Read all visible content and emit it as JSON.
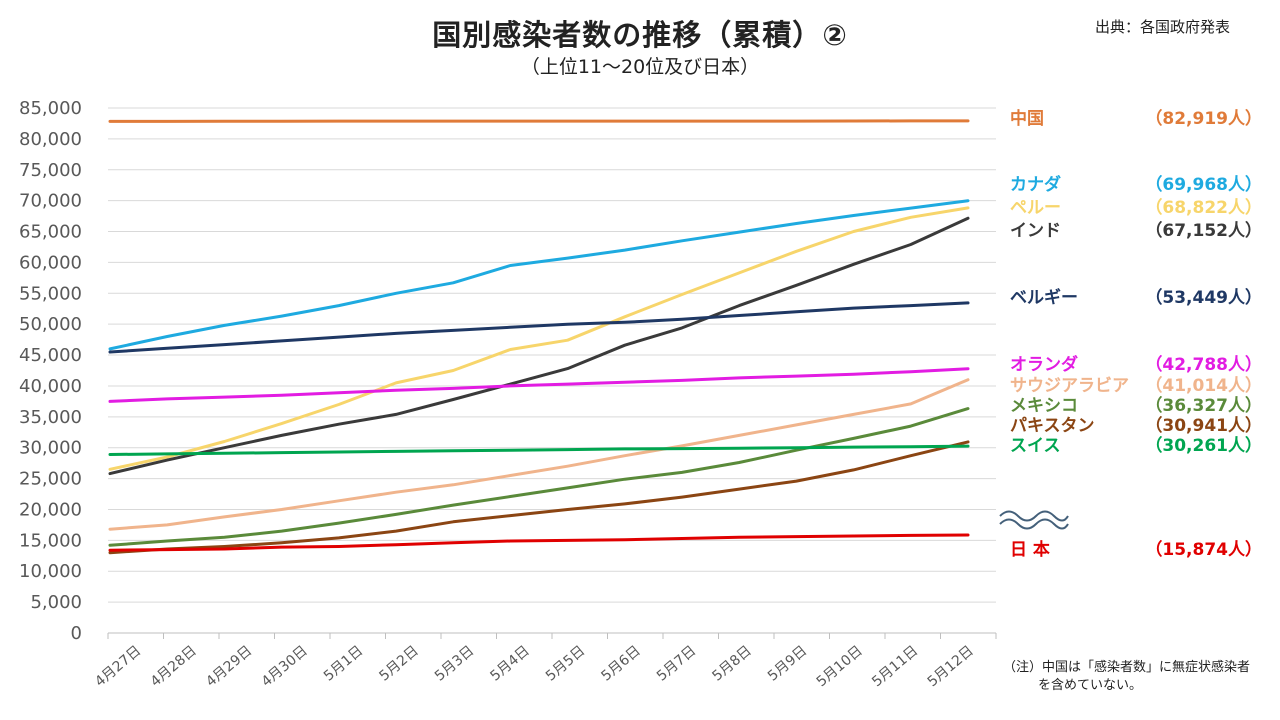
{
  "header": {
    "title": "国別感染者数の推移（累積）②",
    "subtitle": "（上位11～20位及び日本）",
    "source": "出典：各国政府発表"
  },
  "note": {
    "line1": "（注）中国は「感染者数」に無症状感染者",
    "line2": "を含めていない。"
  },
  "chart_data": {
    "type": "line",
    "title": "国別感染者数の推移（累積）②",
    "subtitle": "（上位11～20位及び日本）",
    "xlabel": "",
    "ylabel": "",
    "ylim": [
      0,
      85000
    ],
    "y_ticks": [
      "0",
      "5,000",
      "10,000",
      "15,000",
      "20,000",
      "25,000",
      "30,000",
      "35,000",
      "40,000",
      "45,000",
      "50,000",
      "55,000",
      "60,000",
      "65,000",
      "70,000",
      "75,000",
      "80,000",
      "85,000"
    ],
    "grid": true,
    "legend": "right",
    "x": [
      "4月27日",
      "4月28日",
      "4月29日",
      "4月30日",
      "5月1日",
      "5月2日",
      "5月3日",
      "5月4日",
      "5月5日",
      "5月6日",
      "5月7日",
      "5月8日",
      "5月9日",
      "5月10日",
      "5月11日",
      "5月12日"
    ],
    "series": [
      {
        "name": "中国",
        "total_label": "（82,919人）",
        "color": "#E07B39",
        "values": [
          82830,
          82836,
          82858,
          82862,
          82874,
          82875,
          82877,
          82880,
          82881,
          82883,
          82885,
          82886,
          82887,
          82901,
          82918,
          82919
        ]
      },
      {
        "name": "カナダ",
        "total_label": "（69,968人）",
        "color": "#1EAAE0",
        "values": [
          46000,
          48000,
          49800,
          51300,
          53000,
          55000,
          56700,
          59500,
          60700,
          62000,
          63500,
          64900,
          66300,
          67600,
          68800,
          69968
        ]
      },
      {
        "name": "ペルー",
        "total_label": "（68,822人）",
        "color": "#F7D56B",
        "values": [
          26500,
          28500,
          31000,
          33900,
          37000,
          40500,
          42500,
          45900,
          47400,
          51200,
          54800,
          58300,
          61800,
          65000,
          67300,
          68822
        ]
      },
      {
        "name": "インド",
        "total_label": "（67,152人）",
        "color": "#3A3A3A",
        "values": [
          25800,
          28000,
          30000,
          32000,
          33800,
          35400,
          37800,
          40300,
          42800,
          46600,
          49400,
          53000,
          56300,
          59700,
          62900,
          67152
        ]
      },
      {
        "name": "ベルギー",
        "total_label": "（53,449人）",
        "color": "#1F3864",
        "values": [
          45500,
          46100,
          46700,
          47300,
          47900,
          48500,
          49000,
          49500,
          50000,
          50300,
          50800,
          51400,
          52000,
          52600,
          53000,
          53449
        ]
      },
      {
        "name": "オランダ",
        "total_label": "（42,788人）",
        "color": "#E21CE2",
        "values": [
          37500,
          37900,
          38200,
          38500,
          38900,
          39300,
          39600,
          40000,
          40300,
          40600,
          40900,
          41300,
          41600,
          41900,
          42300,
          42788
        ]
      },
      {
        "name": "サウジアラビア",
        "total_label": "（41,014人）",
        "color": "#F0B48C",
        "values": [
          16800,
          17500,
          18800,
          20000,
          21400,
          22800,
          24000,
          25500,
          27000,
          28700,
          30300,
          32000,
          33700,
          35400,
          37100,
          41014
        ]
      },
      {
        "name": "メキシコ",
        "total_label": "（36,327人）",
        "color": "#5A8A3A",
        "values": [
          14200,
          14900,
          15500,
          16500,
          17800,
          19200,
          20700,
          22100,
          23500,
          24900,
          26000,
          27600,
          29600,
          31500,
          33500,
          36327
        ]
      },
      {
        "name": "パキスタン",
        "total_label": "（30,941人）",
        "color": "#8B4513",
        "values": [
          13000,
          13600,
          14000,
          14600,
          15400,
          16500,
          18000,
          19000,
          20000,
          20900,
          22000,
          23300,
          24600,
          26400,
          28700,
          30941
        ]
      },
      {
        "name": "スイス",
        "total_label": "（30,261人）",
        "color": "#00A550",
        "values": [
          28900,
          29000,
          29100,
          29200,
          29300,
          29400,
          29500,
          29600,
          29700,
          29800,
          29850,
          29900,
          30000,
          30100,
          30150,
          30261
        ]
      },
      {
        "name": "日 本",
        "total_label": "（15,874人）",
        "color": "#E00000",
        "values": [
          13400,
          13500,
          13600,
          13900,
          14000,
          14300,
          14600,
          14900,
          15000,
          15100,
          15300,
          15500,
          15600,
          15700,
          15800,
          15874
        ]
      }
    ]
  }
}
